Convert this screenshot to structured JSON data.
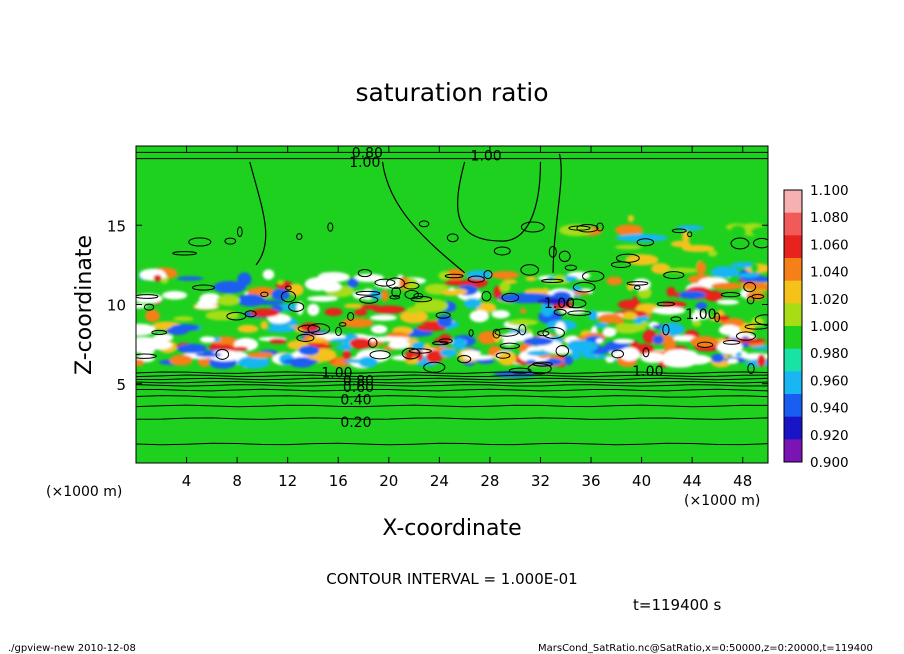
{
  "chart_data": {
    "type": "heatmap",
    "title": "saturation ratio",
    "xlabel": "X-coordinate",
    "ylabel": "Z-coordinate",
    "x_unit": "(×1000 m)",
    "y_unit": "(×1000 m)",
    "xlim": [
      0,
      50
    ],
    "ylim": [
      0,
      20
    ],
    "x_ticks": [
      4,
      8,
      12,
      16,
      20,
      24,
      28,
      32,
      36,
      40,
      44,
      48
    ],
    "y_ticks": [
      5,
      10,
      15
    ],
    "colorbar": {
      "levels": [
        "1.100",
        "1.080",
        "1.060",
        "1.040",
        "1.020",
        "1.000",
        "0.980",
        "0.960",
        "0.940",
        "0.920",
        "0.900"
      ],
      "colors": [
        "#f7b0b0",
        "#f25a5a",
        "#e8221c",
        "#f58018",
        "#f5c21a",
        "#a6dd14",
        "#1fd11f",
        "#18e2a6",
        "#18b6f2",
        "#1a5df2",
        "#1a14c8",
        "#7a14b4"
      ]
    },
    "contour_labels": [
      {
        "text": "0.80",
        "x": 18.3,
        "z": 19.6
      },
      {
        "text": "1.00",
        "x": 18.1,
        "z": 19.0
      },
      {
        "text": "1.00",
        "x": 27.7,
        "z": 19.4
      },
      {
        "text": "1.00",
        "x": 33.5,
        "z": 10.1
      },
      {
        "text": "1.00",
        "x": 44.7,
        "z": 9.4
      },
      {
        "text": "1.00",
        "x": 40.5,
        "z": 5.8
      },
      {
        "text": "1.00",
        "x": 15.9,
        "z": 5.7
      },
      {
        "text": "0.80",
        "x": 17.6,
        "z": 5.2
      },
      {
        "text": "0.60",
        "x": 17.6,
        "z": 4.8
      },
      {
        "text": "0.40",
        "x": 17.4,
        "z": 4.0
      },
      {
        "text": "0.20",
        "x": 17.4,
        "z": 2.6
      }
    ],
    "contour_interval_text": "CONTOUR INTERVAL = 1.000E-01",
    "time_text": "t=119400 s"
  },
  "footer": {
    "left": "./gpview-new  2010-12-08",
    "right": "MarsCond_SatRatio.nc@SatRatio,x=0:50000,z=0:20000,t=119400"
  }
}
